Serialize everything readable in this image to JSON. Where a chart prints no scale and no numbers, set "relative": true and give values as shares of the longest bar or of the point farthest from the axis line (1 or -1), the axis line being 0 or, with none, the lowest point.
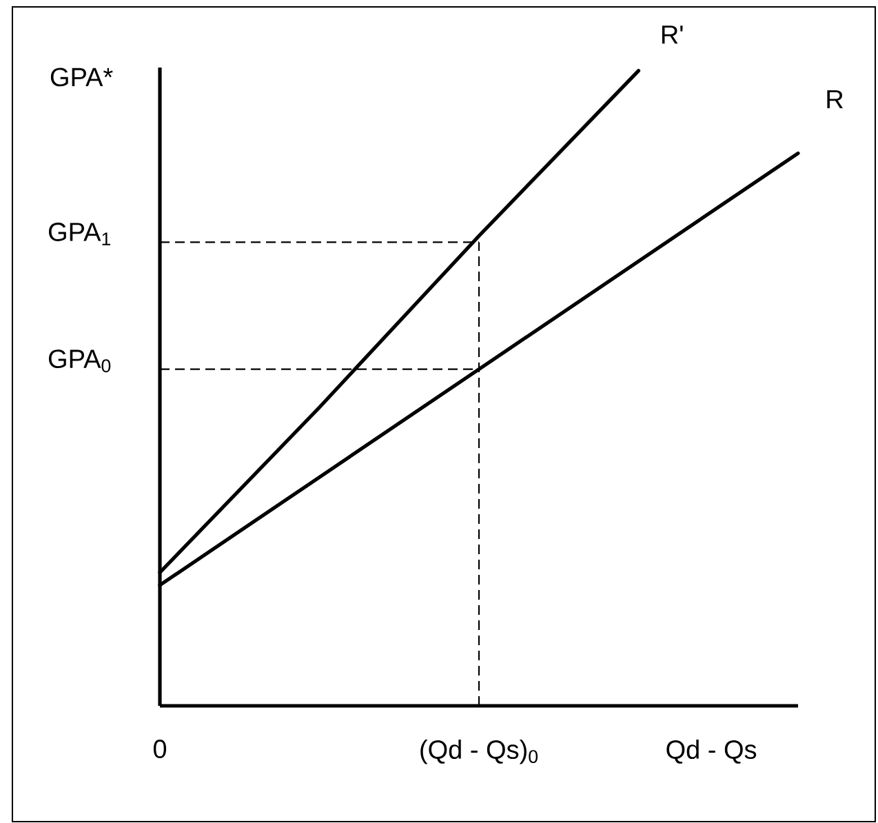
{
  "chart_data": {
    "type": "line",
    "relative": true,
    "xlabel": "Qd - Qs",
    "ylabel": "GPA*",
    "categories": [
      "0",
      null,
      "(Qd - Qs)$_{0}$",
      null,
      null
    ],
    "grid": false,
    "legend": false,
    "marker": "none",
    "line_style": "solid",
    "ref_lines": [
      {
        "axis": "y",
        "value": 0.53,
        "label": "GPA$_{0}$",
        "color": "#000000",
        "line_style": "dashed"
      },
      {
        "axis": "y",
        "value": 0.73,
        "label": "GPA$_{1}$",
        "color": "#000000",
        "line_style": "dashed"
      },
      {
        "axis": "x",
        "value": "(Qd - Qs)$_{0}$",
        "color": "#000000",
        "line_style": "dashed"
      }
    ],
    "series": [
      {
        "name": "R'",
        "color": "#000000",
        "values": [
          0.21,
          0.47,
          0.74,
          1.0,
          null
        ]
      },
      {
        "name": "R",
        "color": "#000000",
        "values": [
          0.19,
          0.36,
          0.53,
          0.7,
          0.87
        ]
      }
    ]
  }
}
